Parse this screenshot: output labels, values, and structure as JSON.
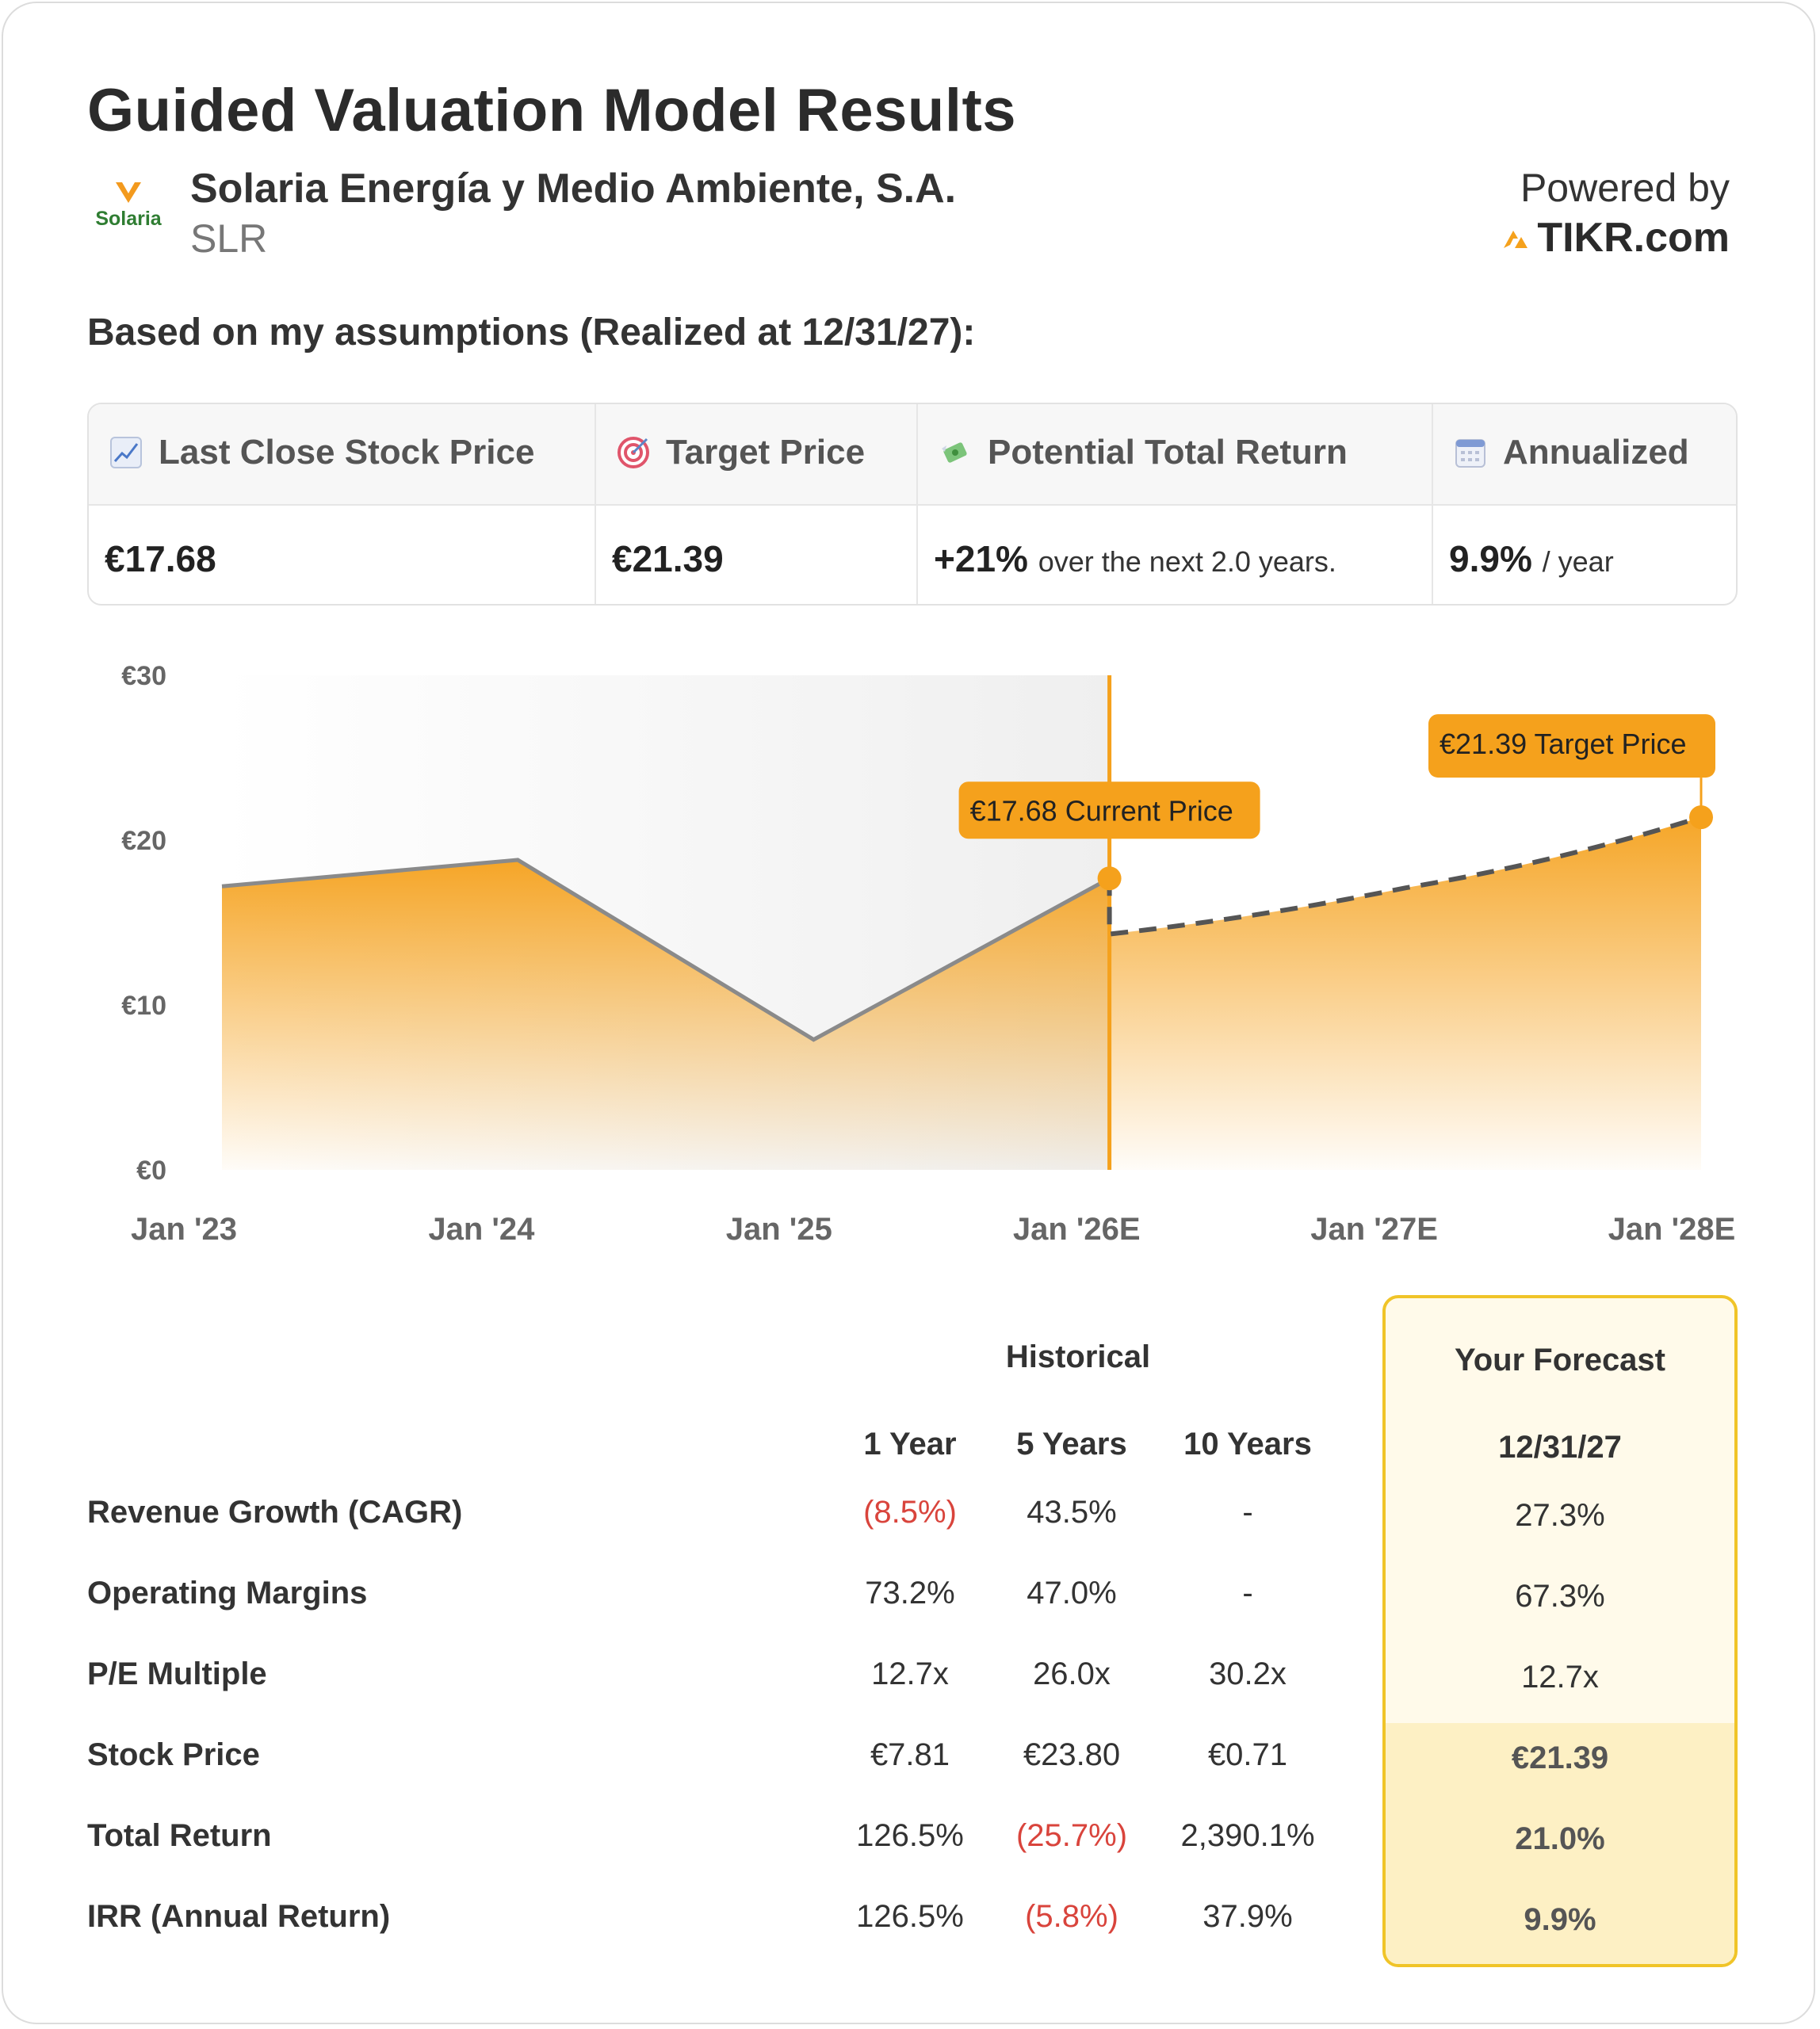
{
  "header": {
    "title": "Guided Valuation Model Results",
    "company_name": "Solaria Energía y Medio Ambiente, S.A.",
    "ticker": "SLR",
    "logo_text": "Solaria",
    "powered_by": "Powered by",
    "brand": "TIKR.com"
  },
  "assumptions": "Based on my assumptions (Realized at 12/31/27):",
  "summary": {
    "columns": [
      {
        "icon": "chart-increasing-icon",
        "label": "Last Close Stock Price",
        "value": "€17.68",
        "suffix": ""
      },
      {
        "icon": "target-icon",
        "label": "Target Price",
        "value": "€21.39",
        "suffix": ""
      },
      {
        "icon": "money-with-wings-icon",
        "label": "Potential Total Return",
        "value": "+21%",
        "suffix": "over the next 2.0 years."
      },
      {
        "icon": "calendar-icon",
        "label": "Annualized",
        "value": "9.9%",
        "suffix": "/ year"
      }
    ]
  },
  "chart_data": {
    "type": "area",
    "x": [
      "Jan '23",
      "Jan '24",
      "Jan '25",
      "Jan '26E",
      "Jan '27E",
      "Jan '28E"
    ],
    "historical": [
      {
        "x": "Jan '23",
        "y": 17.2
      },
      {
        "x": "Jan '24",
        "y": 18.8
      },
      {
        "x": "Jan '25",
        "y": 7.9
      },
      {
        "x": "Jan '26E",
        "y": 17.68
      }
    ],
    "forecast": [
      {
        "x": "Jan '26E",
        "y": 14.3
      },
      {
        "x": "Jan '27E",
        "y": 17.1
      },
      {
        "x": "Jan '28E",
        "y": 21.39
      }
    ],
    "yticks": [
      "€0",
      "€10",
      "€20",
      "€30"
    ],
    "ylim": [
      0,
      30
    ],
    "annotations": {
      "current": "€17.68 Current Price",
      "target": "€21.39 Target Price"
    },
    "colors": {
      "accent": "#f5a11c",
      "line": "#8a8a8a",
      "dash": "#555555"
    }
  },
  "table": {
    "historical_label": "Historical",
    "forecast_label": "Your Forecast",
    "columns": [
      "1 Year",
      "5 Years",
      "10 Years"
    ],
    "forecast_date": "12/31/27",
    "rows": [
      {
        "label": "Revenue Growth (CAGR)",
        "values": [
          "(8.5%)",
          "43.5%",
          "-"
        ],
        "forecast": "27.3%"
      },
      {
        "label": "Operating Margins",
        "values": [
          "73.2%",
          "47.0%",
          "-"
        ],
        "forecast": "67.3%"
      },
      {
        "label": "P/E Multiple",
        "values": [
          "12.7x",
          "26.0x",
          "30.2x"
        ],
        "forecast": "12.7x"
      },
      {
        "label": "Stock Price",
        "values": [
          "€7.81",
          "€23.80",
          "€0.71"
        ],
        "forecast": "€21.39"
      },
      {
        "label": "Total Return",
        "values": [
          "126.5%",
          "(25.7%)",
          "2,390.1%"
        ],
        "forecast": "21.0%"
      },
      {
        "label": "IRR (Annual Return)",
        "values": [
          "126.5%",
          "(5.8%)",
          "37.9%"
        ],
        "forecast": "9.9%"
      }
    ]
  }
}
